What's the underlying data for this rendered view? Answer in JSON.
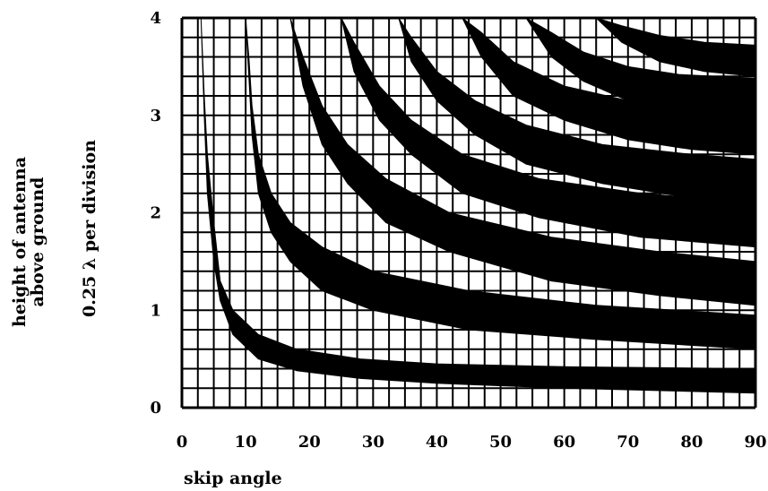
{
  "chart_data": {
    "type": "line",
    "xlabel": "skip angle",
    "ylabel": [
      "height of antenna",
      "above ground"
    ],
    "ylabel_secondary": "0.25 λ per division",
    "xlim": [
      0,
      90
    ],
    "ylim": [
      0,
      4
    ],
    "x_ticks": [
      "0",
      "10",
      "20",
      "30",
      "40",
      "50",
      "60",
      "70",
      "80",
      "90"
    ],
    "y_ticks": [
      "0",
      "1",
      "2",
      "3",
      "4"
    ],
    "grid": true,
    "grid_minor_x": 2.5,
    "grid_minor_y": 0.2,
    "colors": {
      "curve": "#000000",
      "grid": "#000000",
      "background": "#ffffff"
    },
    "series": [
      {
        "x": [
          3,
          3.5,
          4,
          5,
          6,
          8,
          12,
          18,
          28,
          40,
          60,
          90
        ],
        "y_low": [
          4,
          3,
          2.2,
          1.5,
          1.1,
          0.75,
          0.5,
          0.38,
          0.3,
          0.25,
          0.2,
          0.15
        ],
        "y_high": [
          4,
          3.2,
          2.6,
          1.9,
          1.3,
          1.0,
          0.75,
          0.6,
          0.5,
          0.45,
          0.42,
          0.4
        ]
      },
      {
        "x": [
          10,
          10.5,
          11,
          12,
          14,
          17,
          22,
          30,
          45,
          65,
          90
        ],
        "y_low": [
          4,
          3.4,
          2.8,
          2.2,
          1.8,
          1.5,
          1.2,
          1.0,
          0.8,
          0.7,
          0.6
        ],
        "y_high": [
          4,
          3.6,
          3.1,
          2.6,
          2.2,
          1.9,
          1.65,
          1.4,
          1.2,
          1.05,
          0.95
        ]
      },
      {
        "x": [
          17,
          19,
          22,
          26,
          32,
          42,
          58,
          75,
          90
        ],
        "y_low": [
          4,
          3.3,
          2.7,
          2.3,
          1.9,
          1.6,
          1.3,
          1.15,
          1.05
        ],
        "y_high": [
          4,
          3.6,
          3.1,
          2.7,
          2.35,
          2.0,
          1.75,
          1.6,
          1.5
        ]
      },
      {
        "x": [
          25,
          27,
          31,
          36,
          44,
          56,
          72,
          90
        ],
        "y_low": [
          4,
          3.45,
          2.95,
          2.6,
          2.2,
          1.95,
          1.75,
          1.65
        ],
        "y_high": [
          4,
          3.75,
          3.3,
          2.95,
          2.6,
          2.35,
          2.2,
          2.1
        ]
      },
      {
        "x": [
          34,
          36,
          40,
          46,
          54,
          66,
          80,
          90
        ],
        "y_low": [
          4,
          3.55,
          3.15,
          2.8,
          2.5,
          2.3,
          2.15,
          2.1
        ],
        "y_high": [
          4,
          3.8,
          3.45,
          3.15,
          2.9,
          2.7,
          2.6,
          2.55
        ]
      },
      {
        "x": [
          44,
          47,
          52,
          60,
          70,
          80,
          90
        ],
        "y_low": [
          4,
          3.6,
          3.2,
          2.95,
          2.75,
          2.65,
          2.6
        ],
        "y_high": [
          4,
          3.85,
          3.55,
          3.3,
          3.15,
          3.05,
          3.0
        ]
      },
      {
        "x": [
          54,
          58,
          63,
          70,
          78,
          90
        ],
        "y_low": [
          4,
          3.6,
          3.35,
          3.15,
          3.05,
          3.0
        ],
        "y_high": [
          4,
          3.85,
          3.65,
          3.5,
          3.42,
          3.38
        ]
      },
      {
        "x": [
          65,
          69,
          75,
          82,
          90
        ],
        "y_low": [
          4,
          3.75,
          3.55,
          3.45,
          3.4
        ],
        "y_high": [
          4,
          3.92,
          3.82,
          3.75,
          3.72
        ]
      }
    ]
  }
}
